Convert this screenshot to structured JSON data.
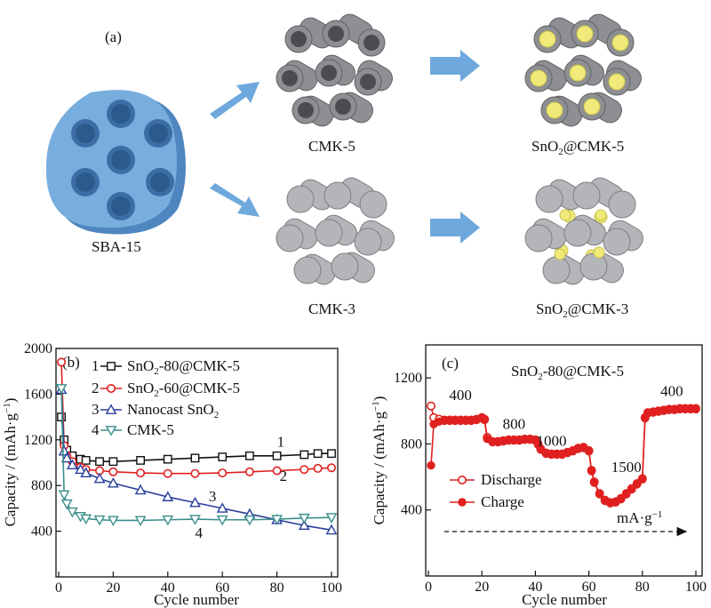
{
  "panel_a": {
    "label": "(a)",
    "structures": {
      "sba15": "SBA-15",
      "cmk5": "CMK-5",
      "cmk3": "CMK-3",
      "sno2_cmk5": "SnO₂@CMK-5",
      "sno2_cmk3": "SnO₂@CMK-3"
    },
    "colors": {
      "silica": "#78aedd",
      "carbon_tube": "#8d8f93",
      "carbon_rod": "#b3b5b8",
      "sno2": "#f0ea7a",
      "arrow": "#6fa8dc"
    }
  },
  "chart_data": [
    {
      "type": "line",
      "panel_label": "(b)",
      "xlabel": "Cycle number",
      "ylabel": "Capacity / (mAh·g⁻¹)",
      "xlim": [
        0,
        100
      ],
      "ylim": [
        0,
        2000
      ],
      "xticks": [
        0,
        20,
        40,
        60,
        80,
        100
      ],
      "yticks": [
        400,
        800,
        1200,
        1600,
        2000
      ],
      "legend_position": "top-left",
      "series": [
        {
          "id": "1",
          "name": "SnO₂-80@CMK-5",
          "color": "#111111",
          "marker": "square",
          "x": [
            1,
            2,
            3,
            5,
            8,
            10,
            15,
            20,
            30,
            40,
            50,
            60,
            70,
            80,
            90,
            95,
            100
          ],
          "y": [
            1400,
            1200,
            1110,
            1060,
            1030,
            1020,
            1010,
            1010,
            1020,
            1030,
            1040,
            1050,
            1060,
            1060,
            1070,
            1080,
            1080
          ]
        },
        {
          "id": "2",
          "name": "SnO₂-60@CMK-5",
          "color": "#e02020",
          "marker": "circle",
          "x": [
            1,
            2,
            3,
            5,
            8,
            10,
            15,
            20,
            30,
            40,
            50,
            60,
            70,
            80,
            90,
            95,
            100
          ],
          "y": [
            1880,
            1150,
            1060,
            1010,
            960,
            940,
            930,
            920,
            910,
            905,
            905,
            910,
            920,
            930,
            940,
            950,
            955
          ]
        },
        {
          "id": "3",
          "name": "Nanocast SnO₂",
          "color": "#2a3f9a",
          "marker": "triangle",
          "x": [
            1,
            2,
            3,
            5,
            8,
            10,
            15,
            20,
            30,
            40,
            50,
            60,
            70,
            80,
            90,
            100
          ],
          "y": [
            1640,
            1100,
            1040,
            980,
            940,
            910,
            860,
            820,
            760,
            700,
            650,
            600,
            550,
            500,
            450,
            410
          ]
        },
        {
          "id": "4",
          "name": "CMK-5",
          "color": "#3a8f8a",
          "marker": "triangle-down",
          "x": [
            1,
            2,
            3,
            5,
            8,
            10,
            15,
            20,
            30,
            40,
            50,
            60,
            70,
            80,
            90,
            100
          ],
          "y": [
            1650,
            720,
            640,
            570,
            530,
            510,
            500,
            495,
            495,
            500,
            505,
            500,
            500,
            505,
            515,
            520
          ]
        }
      ],
      "annotations": [
        "1",
        "2",
        "3",
        "4"
      ]
    },
    {
      "type": "line",
      "panel_label": "(c)",
      "title": "SnO₂-80@CMK-5",
      "xlabel": "Cycle number",
      "ylabel": "Capacity / (mAh·g⁻¹)",
      "xlim": [
        0,
        100
      ],
      "ylim": [
        0,
        1400
      ],
      "xticks": [
        0,
        20,
        40,
        60,
        80,
        100
      ],
      "yticks": [
        400,
        800,
        1200
      ],
      "legend_position": "center-left",
      "rate_labels": [
        "400",
        "800",
        "1000",
        "1500",
        "400"
      ],
      "rate_unit": "mA·g⁻¹",
      "series": [
        {
          "name": "Discharge",
          "color": "#e02020",
          "marker": "open-circle",
          "x": [
            1,
            2,
            4,
            6,
            8,
            10,
            12,
            14,
            16,
            18,
            20,
            21,
            22,
            24,
            26,
            28,
            30,
            32,
            34,
            36,
            38,
            40,
            41,
            42,
            44,
            46,
            48,
            50,
            52,
            54,
            56,
            58,
            60,
            61,
            62,
            64,
            66,
            68,
            70,
            72,
            74,
            76,
            78,
            80,
            81,
            82,
            84,
            86,
            88,
            90,
            92,
            94,
            96,
            98,
            100
          ],
          "y": [
            1030,
            960,
            950,
            945,
            945,
            945,
            945,
            945,
            945,
            950,
            960,
            950,
            840,
            815,
            815,
            820,
            825,
            825,
            825,
            830,
            830,
            825,
            800,
            770,
            745,
            740,
            740,
            740,
            750,
            760,
            775,
            780,
            760,
            640,
            570,
            500,
            460,
            445,
            450,
            470,
            500,
            530,
            560,
            590,
            960,
            990,
            995,
            1000,
            1005,
            1010,
            1010,
            1015,
            1015,
            1015,
            1015
          ]
        },
        {
          "name": "Charge",
          "color": "#e02020",
          "marker": "filled-circle",
          "x": [
            1,
            2,
            4,
            6,
            8,
            10,
            12,
            14,
            16,
            18,
            20,
            21,
            22,
            24,
            26,
            28,
            30,
            32,
            34,
            36,
            38,
            40,
            41,
            42,
            44,
            46,
            48,
            50,
            52,
            54,
            56,
            58,
            60,
            61,
            62,
            64,
            66,
            68,
            70,
            72,
            74,
            76,
            78,
            80,
            81,
            82,
            84,
            86,
            88,
            90,
            92,
            94,
            96,
            98,
            100
          ],
          "y": [
            670,
            920,
            935,
            940,
            940,
            940,
            940,
            940,
            940,
            945,
            955,
            945,
            830,
            810,
            810,
            815,
            820,
            820,
            820,
            825,
            825,
            820,
            795,
            765,
            740,
            735,
            735,
            735,
            745,
            755,
            770,
            775,
            755,
            635,
            565,
            495,
            455,
            440,
            445,
            465,
            495,
            525,
            555,
            585,
            955,
            985,
            990,
            995,
            1000,
            1005,
            1005,
            1010,
            1010,
            1010,
            1010
          ]
        }
      ]
    }
  ]
}
